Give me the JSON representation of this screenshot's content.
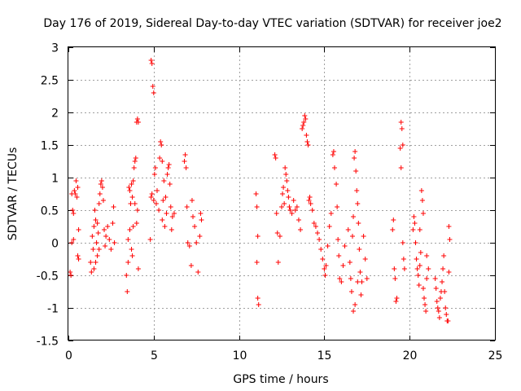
{
  "chart_data": {
    "type": "scatter",
    "title": "Day 176 of 2019, Sidereal Day-to-day VTEC variation (SDTVAR) for receiver joe2",
    "xlabel": "GPS time / hours",
    "ylabel": "SDTVAR / TECUs",
    "xlim": [
      0,
      25
    ],
    "ylim": [
      -1.5,
      3
    ],
    "xticks": [
      0,
      5,
      10,
      15,
      20,
      25
    ],
    "xtick_labels": [
      "0",
      "5",
      "10",
      "15",
      "20",
      "25"
    ],
    "yticks": [
      -1.5,
      -1,
      -0.5,
      0,
      0.5,
      1,
      1.5,
      2,
      2.5,
      3
    ],
    "ytick_labels": [
      "-1.5",
      "-1",
      "-0.5",
      "0",
      "0.5",
      "1",
      "1.5",
      "2",
      "2.5",
      "3"
    ],
    "grid": true,
    "marker": "plus",
    "color": "#ff0000",
    "series": [
      {
        "name": "SDTVAR",
        "points": [
          [
            0.1,
            -0.45
          ],
          [
            0.15,
            -0.5
          ],
          [
            0.2,
            0.75
          ],
          [
            0.25,
            0.5
          ],
          [
            0.3,
            0.45
          ],
          [
            0.35,
            0.8
          ],
          [
            0.4,
            0.75
          ],
          [
            0.45,
            0.95
          ],
          [
            0.5,
            0.7
          ],
          [
            0.55,
            0.85
          ],
          [
            0.6,
            0.2
          ],
          [
            0.55,
            -0.2
          ],
          [
            0.6,
            -0.25
          ],
          [
            0.3,
            0.05
          ],
          [
            0.2,
            0.0
          ],
          [
            1.3,
            -0.3
          ],
          [
            1.35,
            -0.45
          ],
          [
            1.4,
            0.1
          ],
          [
            1.45,
            -0.1
          ],
          [
            1.5,
            0.25
          ],
          [
            1.55,
            0.5
          ],
          [
            1.6,
            0.35
          ],
          [
            1.65,
            0.0
          ],
          [
            1.7,
            -0.2
          ],
          [
            1.75,
            0.15
          ],
          [
            1.8,
            0.6
          ],
          [
            1.85,
            0.75
          ],
          [
            1.9,
            0.9
          ],
          [
            1.95,
            0.95
          ],
          [
            2.0,
            0.85
          ],
          [
            2.05,
            0.65
          ],
          [
            2.1,
            0.2
          ],
          [
            2.15,
            -0.05
          ],
          [
            2.2,
            0.1
          ],
          [
            2.3,
            0.25
          ],
          [
            2.4,
            0.05
          ],
          [
            2.5,
            -0.1
          ],
          [
            2.6,
            0.3
          ],
          [
            2.65,
            0.55
          ],
          [
            2.7,
            0.0
          ],
          [
            1.5,
            -0.4
          ],
          [
            1.6,
            -0.3
          ],
          [
            1.7,
            0.3
          ],
          [
            1.8,
            -0.1
          ],
          [
            3.4,
            -0.5
          ],
          [
            3.45,
            -0.75
          ],
          [
            3.5,
            -0.3
          ],
          [
            3.55,
            0.85
          ],
          [
            3.6,
            0.8
          ],
          [
            3.65,
            0.6
          ],
          [
            3.7,
            0.9
          ],
          [
            3.75,
            0.7
          ],
          [
            3.8,
            0.95
          ],
          [
            3.85,
            1.15
          ],
          [
            3.9,
            1.25
          ],
          [
            3.95,
            1.3
          ],
          [
            4.0,
            1.85
          ],
          [
            4.05,
            1.9
          ],
          [
            4.1,
            1.85
          ],
          [
            3.6,
            0.2
          ],
          [
            3.7,
            -0.1
          ],
          [
            3.8,
            0.25
          ],
          [
            3.9,
            0.6
          ],
          [
            4.0,
            0.3
          ],
          [
            4.1,
            -0.4
          ],
          [
            3.5,
            0.05
          ],
          [
            4.05,
            0.5
          ],
          [
            3.75,
            -0.2
          ],
          [
            4.8,
            0.05
          ],
          [
            4.85,
            2.8
          ],
          [
            4.9,
            2.75
          ],
          [
            4.95,
            2.4
          ],
          [
            5.0,
            2.3
          ],
          [
            4.85,
            0.7
          ],
          [
            4.9,
            0.75
          ],
          [
            5.0,
            0.65
          ],
          [
            5.05,
            1.05
          ],
          [
            5.1,
            1.15
          ],
          [
            5.15,
            0.6
          ],
          [
            5.2,
            0.8
          ],
          [
            5.3,
            0.5
          ],
          [
            5.35,
            1.3
          ],
          [
            5.4,
            1.55
          ],
          [
            5.45,
            1.5
          ],
          [
            5.5,
            1.25
          ],
          [
            5.55,
            0.65
          ],
          [
            5.6,
            0.95
          ],
          [
            5.7,
            0.7
          ],
          [
            5.75,
            0.45
          ],
          [
            5.8,
            1.05
          ],
          [
            5.85,
            1.15
          ],
          [
            5.9,
            1.2
          ],
          [
            5.95,
            0.9
          ],
          [
            6.0,
            0.55
          ],
          [
            6.05,
            0.2
          ],
          [
            6.1,
            0.4
          ],
          [
            6.2,
            0.45
          ],
          [
            5.5,
            0.35
          ],
          [
            5.65,
            0.25
          ],
          [
            6.8,
            1.25
          ],
          [
            6.85,
            1.35
          ],
          [
            6.9,
            1.15
          ],
          [
            6.95,
            0.55
          ],
          [
            7.0,
            0.0
          ],
          [
            7.1,
            -0.05
          ],
          [
            7.2,
            -0.35
          ],
          [
            7.25,
            0.65
          ],
          [
            7.3,
            0.4
          ],
          [
            7.4,
            0.25
          ],
          [
            7.5,
            0.0
          ],
          [
            7.6,
            -0.45
          ],
          [
            7.7,
            0.1
          ],
          [
            7.75,
            0.45
          ],
          [
            7.8,
            0.35
          ],
          [
            11.0,
            0.75
          ],
          [
            11.05,
            0.55
          ],
          [
            11.1,
            0.1
          ],
          [
            11.05,
            -0.3
          ],
          [
            11.1,
            -0.85
          ],
          [
            11.15,
            -0.95
          ],
          [
            12.1,
            1.35
          ],
          [
            12.15,
            1.3
          ],
          [
            12.2,
            0.45
          ],
          [
            12.25,
            0.15
          ],
          [
            12.3,
            -0.3
          ],
          [
            12.4,
            0.1
          ],
          [
            12.5,
            0.55
          ],
          [
            12.55,
            0.75
          ],
          [
            12.6,
            0.85
          ],
          [
            12.65,
            0.6
          ],
          [
            12.7,
            1.15
          ],
          [
            12.75,
            1.05
          ],
          [
            12.8,
            0.95
          ],
          [
            12.85,
            0.8
          ],
          [
            12.9,
            0.7
          ],
          [
            12.95,
            0.55
          ],
          [
            13.0,
            0.5
          ],
          [
            13.1,
            0.45
          ],
          [
            13.2,
            0.65
          ],
          [
            13.3,
            0.5
          ],
          [
            13.4,
            0.55
          ],
          [
            13.5,
            0.35
          ],
          [
            13.6,
            0.2
          ],
          [
            13.7,
            1.75
          ],
          [
            13.75,
            1.8
          ],
          [
            13.8,
            1.85
          ],
          [
            13.85,
            1.95
          ],
          [
            13.9,
            1.9
          ],
          [
            13.95,
            1.65
          ],
          [
            14.0,
            1.55
          ],
          [
            14.05,
            1.5
          ],
          [
            14.1,
            0.65
          ],
          [
            14.15,
            0.7
          ],
          [
            14.2,
            0.6
          ],
          [
            14.3,
            0.5
          ],
          [
            14.4,
            0.3
          ],
          [
            14.5,
            0.25
          ],
          [
            14.6,
            0.15
          ],
          [
            14.7,
            0.05
          ],
          [
            14.8,
            -0.1
          ],
          [
            14.9,
            -0.25
          ],
          [
            15.0,
            -0.4
          ],
          [
            15.05,
            -0.5
          ],
          [
            15.1,
            -0.35
          ],
          [
            15.2,
            -0.05
          ],
          [
            15.3,
            0.25
          ],
          [
            15.4,
            0.45
          ],
          [
            15.5,
            1.35
          ],
          [
            15.55,
            1.4
          ],
          [
            15.6,
            1.15
          ],
          [
            15.7,
            0.9
          ],
          [
            15.75,
            0.55
          ],
          [
            15.8,
            0.05
          ],
          [
            15.85,
            -0.2
          ],
          [
            15.9,
            -0.55
          ],
          [
            16.0,
            -0.6
          ],
          [
            16.1,
            -0.35
          ],
          [
            16.2,
            -0.05
          ],
          [
            16.4,
            0.2
          ],
          [
            16.5,
            -0.3
          ],
          [
            16.55,
            -0.55
          ],
          [
            16.6,
            -0.75
          ],
          [
            16.65,
            0.1
          ],
          [
            16.7,
            0.4
          ],
          [
            16.75,
            1.3
          ],
          [
            16.8,
            1.4
          ],
          [
            16.85,
            1.1
          ],
          [
            16.9,
            0.8
          ],
          [
            16.95,
            0.6
          ],
          [
            17.0,
            0.3
          ],
          [
            17.05,
            -0.1
          ],
          [
            17.1,
            -0.45
          ],
          [
            17.15,
            -0.8
          ],
          [
            17.2,
            -0.6
          ],
          [
            17.3,
            0.1
          ],
          [
            17.4,
            -0.25
          ],
          [
            17.5,
            -0.55
          ],
          [
            16.7,
            -1.05
          ],
          [
            16.8,
            -0.95
          ],
          [
            16.95,
            -0.6
          ],
          [
            19.0,
            0.2
          ],
          [
            19.05,
            0.35
          ],
          [
            19.1,
            -0.4
          ],
          [
            19.15,
            -0.55
          ],
          [
            19.2,
            -0.9
          ],
          [
            19.25,
            -0.85
          ],
          [
            19.5,
            1.85
          ],
          [
            19.55,
            1.75
          ],
          [
            19.6,
            1.5
          ],
          [
            19.5,
            1.15
          ],
          [
            19.6,
            0.0
          ],
          [
            19.65,
            -0.25
          ],
          [
            19.7,
            -0.4
          ],
          [
            19.45,
            1.45
          ],
          [
            20.2,
            0.2
          ],
          [
            20.25,
            0.4
          ],
          [
            20.3,
            0.3
          ],
          [
            20.35,
            0.0
          ],
          [
            20.4,
            -0.25
          ],
          [
            20.45,
            -0.4
          ],
          [
            20.5,
            -0.5
          ],
          [
            20.55,
            -0.65
          ],
          [
            20.6,
            -0.35
          ],
          [
            20.65,
            -0.15
          ],
          [
            20.7,
            0.8
          ],
          [
            20.75,
            0.65
          ],
          [
            20.8,
            0.45
          ],
          [
            20.85,
            -0.85
          ],
          [
            20.9,
            -0.95
          ],
          [
            20.95,
            -1.05
          ],
          [
            21.0,
            -0.55
          ],
          [
            21.1,
            -0.4
          ],
          [
            21.0,
            -0.2
          ],
          [
            20.8,
            -0.7
          ],
          [
            20.6,
            0.2
          ],
          [
            21.5,
            -0.55
          ],
          [
            21.55,
            -0.7
          ],
          [
            21.6,
            -0.9
          ],
          [
            21.65,
            -1.0
          ],
          [
            21.7,
            -1.05
          ],
          [
            21.75,
            -1.15
          ],
          [
            21.8,
            -0.85
          ],
          [
            21.85,
            -0.75
          ],
          [
            21.9,
            -0.6
          ],
          [
            21.95,
            -0.4
          ],
          [
            22.0,
            -0.2
          ],
          [
            22.05,
            -0.75
          ],
          [
            22.1,
            -1.0
          ],
          [
            22.15,
            -1.1
          ],
          [
            22.2,
            -1.2
          ],
          [
            22.25,
            -1.2
          ],
          [
            22.3,
            0.25
          ],
          [
            22.35,
            0.05
          ],
          [
            22.3,
            -0.45
          ]
        ]
      }
    ]
  }
}
